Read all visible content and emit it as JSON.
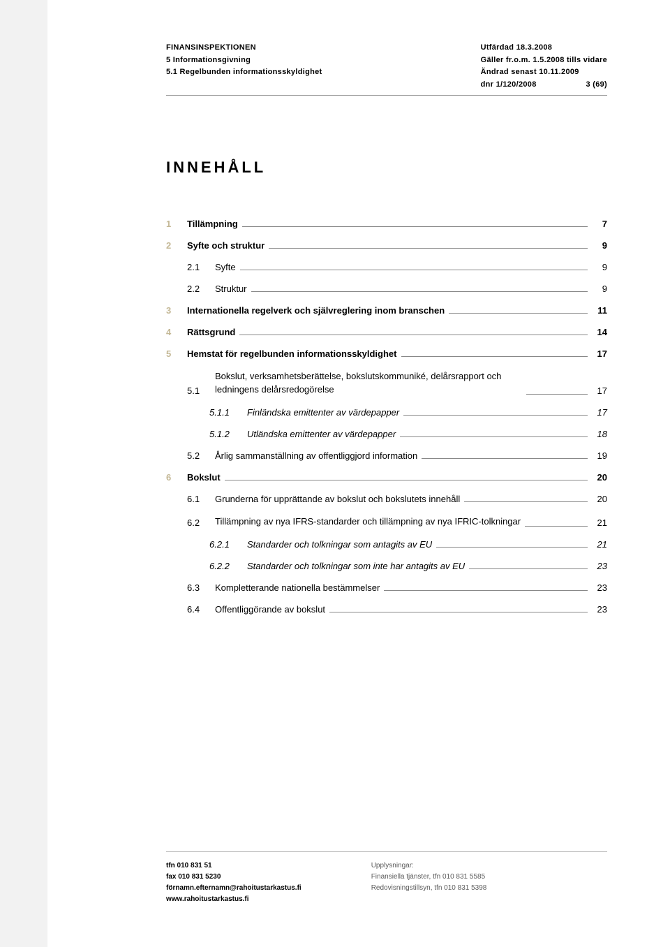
{
  "header": {
    "left": {
      "org": "FINANSINSPEKTIONEN",
      "section": "5 Informationsgivning",
      "subsection": "5.1 Regelbunden informationsskyldighet"
    },
    "right": {
      "issued": "Utfärdad 18.3.2008",
      "valid": "Gäller fr.o.m. 1.5.2008 tills vidare",
      "changed": "Ändrad senast 10.11.2009",
      "dnr": "dnr 1/120/2008",
      "page": "3 (69)"
    }
  },
  "title": "INNEHÅLL",
  "toc": [
    {
      "level": 0,
      "num": "1",
      "label": "Tillämpning",
      "page": "7",
      "bold": true,
      "tan": true
    },
    {
      "level": 0,
      "num": "2",
      "label": "Syfte och struktur",
      "page": "9",
      "bold": true,
      "tan": true
    },
    {
      "level": 1,
      "num": "2.1",
      "label": "Syfte",
      "page": "9"
    },
    {
      "level": 1,
      "num": "2.2",
      "label": "Struktur",
      "page": "9"
    },
    {
      "level": 0,
      "num": "3",
      "label": "Internationella regelverk och självreglering inom branschen",
      "page": "11",
      "bold": true,
      "tan": true
    },
    {
      "level": 0,
      "num": "4",
      "label": "Rättsgrund",
      "page": "14",
      "bold": true,
      "tan": true
    },
    {
      "level": 0,
      "num": "5",
      "label": "Hemstat för regelbunden informationsskyldighet",
      "page": "17",
      "bold": true,
      "tan": true
    },
    {
      "level": 1,
      "num": "5.1",
      "label": "Bokslut, verksamhetsberättelse, bokslutskommuniké, delårsrapport och ledningens delårsredogörelse",
      "page": "17",
      "wrap": true
    },
    {
      "level": 2,
      "num": "5.1.1",
      "label": "Finländska emittenter av värdepapper",
      "page": "17",
      "italic": true
    },
    {
      "level": 2,
      "num": "5.1.2",
      "label": "Utländska emittenter av värdepapper",
      "page": "18",
      "italic": true
    },
    {
      "level": 1,
      "num": "5.2",
      "label": "Årlig sammanställning av offentliggjord information",
      "page": "19"
    },
    {
      "level": 0,
      "num": "6",
      "label": "Bokslut",
      "page": "20",
      "bold": true,
      "tan": true
    },
    {
      "level": 1,
      "num": "6.1",
      "label": "Grunderna för upprättande av bokslut och bokslutets innehåll",
      "page": "20"
    },
    {
      "level": 1,
      "num": "6.2",
      "label": "Tillämpning av nya IFRS-standarder och tillämpning av nya IFRIC-tolkningar",
      "page": "21",
      "wrap": true
    },
    {
      "level": 2,
      "num": "6.2.1",
      "label": "Standarder och tolkningar som antagits av EU",
      "page": "21",
      "italic": true
    },
    {
      "level": 2,
      "num": "6.2.2",
      "label": "Standarder och tolkningar som inte har antagits av EU",
      "page": "23",
      "italic": true
    },
    {
      "level": 1,
      "num": "6.3",
      "label": "Kompletterande nationella bestämmelser",
      "page": "23"
    },
    {
      "level": 1,
      "num": "6.4",
      "label": "Offentliggörande av bokslut",
      "page": "23"
    }
  ],
  "footer": {
    "left": {
      "tel": "tfn 010 831 51",
      "fax": "fax 010 831 5230",
      "email": "förnamn.efternamn@rahoitustarkastus.fi",
      "web": "www.rahoitustarkastus.fi"
    },
    "right": {
      "heading": "Upplysningar:",
      "line1": "Finansiella tjänster, tfn 010 831 5585",
      "line2": "Redovisningstillsyn, tfn 010 831 5398"
    }
  }
}
